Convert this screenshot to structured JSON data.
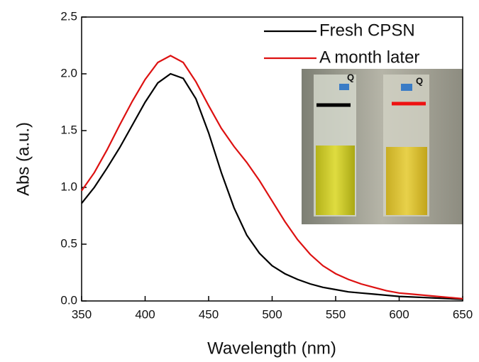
{
  "chart_data": {
    "type": "line",
    "xlabel": "Wavelength (nm)",
    "ylabel": "Abs (a.u.)",
    "x": [
      350,
      360,
      370,
      380,
      390,
      400,
      410,
      420,
      430,
      440,
      450,
      460,
      470,
      480,
      490,
      500,
      510,
      520,
      530,
      540,
      550,
      560,
      570,
      580,
      590,
      600,
      610,
      620,
      630,
      640,
      650
    ],
    "series": [
      {
        "name": "Fresh CPSN",
        "color": "#000000",
        "values": [
          0.86,
          1.0,
          1.17,
          1.35,
          1.55,
          1.75,
          1.92,
          2.0,
          1.96,
          1.78,
          1.48,
          1.13,
          0.82,
          0.58,
          0.42,
          0.31,
          0.24,
          0.19,
          0.15,
          0.12,
          0.1,
          0.08,
          0.07,
          0.06,
          0.05,
          0.04,
          0.035,
          0.03,
          0.025,
          0.02,
          0.015
        ]
      },
      {
        "name": "A month later",
        "color": "#dd1111",
        "values": [
          0.97,
          1.13,
          1.33,
          1.55,
          1.76,
          1.95,
          2.1,
          2.16,
          2.1,
          1.93,
          1.72,
          1.52,
          1.36,
          1.22,
          1.06,
          0.88,
          0.7,
          0.54,
          0.41,
          0.31,
          0.24,
          0.19,
          0.15,
          0.12,
          0.09,
          0.07,
          0.06,
          0.05,
          0.04,
          0.03,
          0.02
        ]
      }
    ],
    "xlim": [
      350,
      650
    ],
    "xticks": [
      350,
      400,
      450,
      500,
      550,
      600,
      650
    ],
    "ylim": [
      0,
      2.5
    ],
    "yticks": [
      {
        "value": 0,
        "label": "0.0"
      },
      0.5,
      {
        "value": 1,
        "label": "1.0"
      },
      1.5,
      {
        "value": 2,
        "label": "2.0"
      },
      2.5
    ],
    "legend": "upper right",
    "annotations": [
      "Q",
      "Q"
    ]
  }
}
